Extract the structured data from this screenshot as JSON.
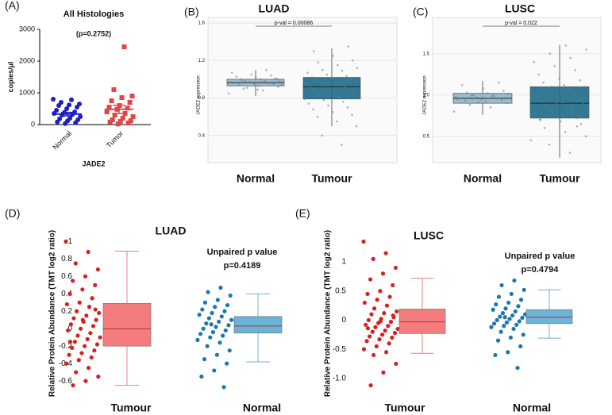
{
  "chart_data": [
    {
      "type": "dot",
      "panel_label": "(A)",
      "title": "All Histologies",
      "annotation": "(p=0.2752)",
      "ylabel": "copies/µl",
      "xlabel": "JADE2",
      "ylim": [
        0,
        3000
      ],
      "yticks": [
        0,
        1000,
        2000,
        3000
      ],
      "groups": [
        {
          "name": "Normal",
          "color": "#1f1fbf",
          "mean": 330,
          "sem": 55,
          "points": [
            800,
            780,
            700,
            650,
            620,
            600,
            550,
            500,
            450,
            400,
            380,
            350,
            320,
            300,
            250,
            200,
            180,
            150,
            120,
            80,
            60,
            30
          ]
        },
        {
          "name": "Tumor",
          "color": "#e04545",
          "mean": 480,
          "sem": 130,
          "points": [
            2450,
            1100,
            900,
            850,
            750,
            700,
            600,
            550,
            520,
            480,
            400,
            350,
            300,
            250,
            200,
            150,
            120,
            100,
            80,
            50,
            20
          ]
        }
      ]
    },
    {
      "type": "box",
      "panel_label": "(B)",
      "title": "LUAD",
      "bracket_label": "p-val = 0.00086",
      "annotation": "(p=0.00086)",
      "ylabel": "JADE2 expression",
      "ylim": [
        0.11,
        1.66
      ],
      "yticks": [
        0.4,
        0.8,
        1.2,
        1.6
      ],
      "grid": true,
      "groups": [
        {
          "name": "Normal",
          "box_color": "#8fb3c9",
          "point_color": "#777777",
          "min": 0.82,
          "q1": 0.93,
          "median": 0.964,
          "q3": 1.0,
          "max": 1.1,
          "points": [
            0.85,
            0.88,
            0.9,
            0.92,
            0.93,
            0.94,
            0.95,
            0.95,
            0.96,
            0.96,
            0.97,
            0.97,
            0.98,
            0.98,
            0.99,
            1.0,
            1.0,
            1.01,
            1.02,
            1.03,
            1.04,
            1.05,
            1.07,
            1.1,
            0.91,
            0.94,
            0.97,
            0.99,
            1.0,
            0.89
          ]
        },
        {
          "name": "Tumour",
          "box_color": "#1b6a8a",
          "point_color": "#777777",
          "min": 0.5,
          "q1": 0.79,
          "median": 0.92,
          "q3": 1.02,
          "max": 1.33,
          "points": [
            0.3,
            0.4,
            0.5,
            0.55,
            0.6,
            0.62,
            0.65,
            0.68,
            0.7,
            0.72,
            0.74,
            0.76,
            0.78,
            0.8,
            0.81,
            0.83,
            0.85,
            0.86,
            0.88,
            0.89,
            0.9,
            0.91,
            0.92,
            0.93,
            0.94,
            0.95,
            0.96,
            0.97,
            0.98,
            0.99,
            1.0,
            1.01,
            1.02,
            1.03,
            1.05,
            1.07,
            1.09,
            1.1,
            1.12,
            1.15,
            1.18,
            1.2,
            1.25,
            1.3,
            1.35,
            0.87,
            0.93,
            0.96,
            0.84,
            0.79
          ]
        }
      ]
    },
    {
      "type": "box",
      "panel_label": "(C)",
      "title": "LUSC",
      "bracket_label": "p-val = 0.022",
      "annotation": "(p=0.022)",
      "ylabel": "JADE2 expression",
      "ylim": [
        0.18,
        1.94
      ],
      "yticks": [
        0.5,
        {
          "value": 1,
          "label": "1.0"
        },
        1.5
      ],
      "grid": true,
      "groups": [
        {
          "name": "Normal",
          "box_color": "#8fb3c9",
          "point_color": "#777777",
          "min": 0.76,
          "q1": 0.9,
          "median": 0.96,
          "q3": 1.02,
          "max": 1.17,
          "points": [
            0.8,
            0.85,
            0.88,
            0.9,
            0.92,
            0.93,
            0.94,
            0.95,
            0.96,
            0.96,
            0.97,
            0.98,
            0.99,
            1.0,
            1.01,
            1.02,
            1.03,
            1.05,
            1.08,
            1.12,
            1.15,
            0.91,
            0.95,
            0.99,
            1.0
          ]
        },
        {
          "name": "Tumour",
          "box_color": "#1b6a8a",
          "point_color": "#777777",
          "min": 0.24,
          "q1": 0.72,
          "median": 0.9,
          "q3": 1.1,
          "max": 1.61,
          "points": [
            0.3,
            0.4,
            0.5,
            0.55,
            0.6,
            0.65,
            0.68,
            0.7,
            0.72,
            0.75,
            0.78,
            0.8,
            0.82,
            0.84,
            0.86,
            0.88,
            0.9,
            0.91,
            0.92,
            0.94,
            0.96,
            0.98,
            1.0,
            1.02,
            1.04,
            1.06,
            1.08,
            1.1,
            1.12,
            1.15,
            1.18,
            1.2,
            1.25,
            1.3,
            1.35,
            1.4,
            1.45,
            1.5,
            1.55,
            1.6,
            0.85,
            0.95,
            1.05,
            0.7,
            0.62,
            0.9,
            1.0,
            0.8,
            1.1,
            0.45
          ]
        }
      ]
    },
    {
      "type": "box",
      "panel_label": "(D)",
      "title": "LUAD",
      "stat_label": "Unpaired p value",
      "annotation": "p=0.4189",
      "ylabel": "Relative Protein Abundance (TMT log2 ratio)",
      "ylim": [
        -0.69,
        1.04
      ],
      "yticks": [
        -0.6,
        -0.4,
        -0.2,
        0,
        0.2,
        0.4,
        0.6,
        0.8,
        1
      ],
      "groups": [
        {
          "name": "Tumour",
          "box_color": "#f47c7c",
          "point_color": "#d62020",
          "min": -0.65,
          "q1": -0.2,
          "median": 0,
          "q3": 0.29,
          "max": 0.89,
          "points": [
            1.0,
            0.88,
            0.75,
            0.68,
            0.6,
            0.55,
            0.5,
            0.45,
            0.4,
            0.35,
            0.3,
            0.28,
            0.25,
            0.2,
            0.18,
            0.15,
            0.12,
            0.1,
            0.08,
            0.05,
            0.03,
            0,
            -0.02,
            -0.05,
            -0.08,
            -0.1,
            -0.12,
            -0.15,
            -0.18,
            -0.2,
            -0.22,
            -0.25,
            -0.28,
            -0.3,
            -0.33,
            -0.36,
            -0.4,
            -0.45,
            -0.5,
            -0.55,
            -0.6,
            -0.65,
            0.22,
            0.1,
            -0.15
          ]
        },
        {
          "name": "Normal",
          "box_color": "#6bb4d8",
          "point_color": "#1a78b0",
          "min": -0.38,
          "q1": -0.05,
          "median": 0.03,
          "q3": 0.14,
          "max": 0.4,
          "points": [
            0.47,
            0.42,
            0.38,
            0.33,
            0.3,
            0.27,
            0.25,
            0.22,
            0.2,
            0.18,
            0.16,
            0.14,
            0.12,
            0.1,
            0.08,
            0.06,
            0.04,
            0.02,
            0,
            -0.02,
            -0.04,
            -0.06,
            -0.08,
            -0.1,
            -0.13,
            -0.16,
            -0.2,
            -0.25,
            -0.3,
            -0.35,
            -0.4,
            -0.48,
            -0.55,
            -0.67,
            0.05
          ]
        }
      ]
    },
    {
      "type": "box",
      "panel_label": "(E)",
      "title": "LUSC",
      "stat_label": "Unpaired p value",
      "annotation": "p=0.4794",
      "ylabel": "Relative Protein Abundance (TMT log2 ratio)",
      "ylim": [
        -1.18,
        1.41
      ],
      "yticks": [
        {
          "value": -1,
          "label": "-1.0"
        },
        -0.5,
        0,
        0.5,
        1
      ],
      "groups": [
        {
          "name": "Tumour",
          "box_color": "#f47c7c",
          "point_color": "#d62020",
          "min": -0.57,
          "q1": -0.23,
          "median": -0.03,
          "q3": 0.19,
          "max": 0.72,
          "points": [
            1.35,
            1.15,
            1.05,
            0.9,
            0.8,
            0.7,
            0.6,
            0.5,
            0.45,
            0.4,
            0.35,
            0.3,
            0.25,
            0.2,
            0.15,
            0.12,
            0.1,
            0.05,
            0.02,
            0,
            -0.03,
            -0.05,
            -0.08,
            -0.1,
            -0.12,
            -0.15,
            -0.18,
            -0.2,
            -0.22,
            -0.25,
            -0.28,
            -0.3,
            -0.33,
            -0.36,
            -0.4,
            -0.45,
            -0.5,
            -0.55,
            -0.6,
            -0.75,
            -0.9,
            -1.12,
            0.08,
            -0.02,
            -0.14
          ]
        },
        {
          "name": "Normal",
          "box_color": "#6bb4d8",
          "point_color": "#1a78b0",
          "min": -0.31,
          "q1": -0.06,
          "median": 0.05,
          "q3": 0.18,
          "max": 0.52,
          "points": [
            0.68,
            0.6,
            0.52,
            0.45,
            0.4,
            0.35,
            0.3,
            0.27,
            0.24,
            0.2,
            0.18,
            0.15,
            0.12,
            0.1,
            0.08,
            0.06,
            0.04,
            0.02,
            0,
            -0.02,
            -0.04,
            -0.06,
            -0.08,
            -0.1,
            -0.12,
            -0.15,
            -0.2,
            -0.25,
            -0.3,
            -0.35,
            -0.45,
            -0.55,
            -0.6,
            -0.82,
            0.05
          ]
        }
      ]
    }
  ]
}
